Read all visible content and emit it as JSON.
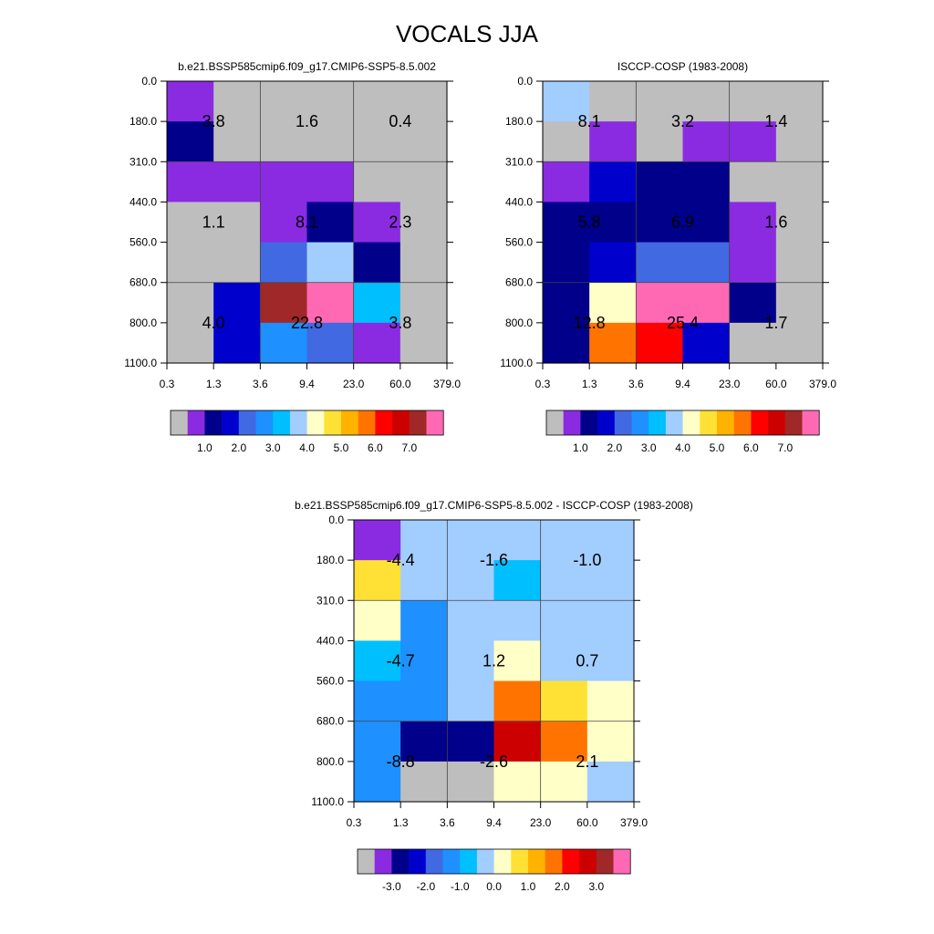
{
  "title": "VOCALS JJA",
  "palettes": {
    "abs": [
      "#bebebe",
      "#8a2be2",
      "#00008b",
      "#0000cd",
      "#4169e1",
      "#1e90ff",
      "#00bfff",
      "#a2cdff",
      "#ffffc8",
      "#ffe135",
      "#ffb300",
      "#ff7400",
      "#ff0000",
      "#cd0000",
      "#a02828",
      "#ff69b4"
    ],
    "diff": [
      "#bebebe",
      "#8a2be2",
      "#00008b",
      "#0000cd",
      "#4169e1",
      "#1e90ff",
      "#00bfff",
      "#a2cdff",
      "#ffffc8",
      "#ffe135",
      "#ffb300",
      "#ff7400",
      "#ff0000",
      "#cd0000",
      "#a02828",
      "#ff69b4"
    ]
  },
  "chart_data": [
    {
      "type": "heatmap",
      "title": "b.e21.BSSP585cmip6.f09_g17.CMIP6-SSP5-8.5.002",
      "x_tick_labels": [
        "0.3",
        "1.3",
        "3.6",
        "9.4",
        "23.0",
        "60.0",
        "379.0"
      ],
      "y_tick_labels": [
        "0.0",
        "180.0",
        "310.0",
        "440.0",
        "560.0",
        "680.0",
        "800.0",
        "1100.0"
      ],
      "cells": [
        [
          1,
          0,
          0,
          0,
          0,
          0
        ],
        [
          2,
          0,
          0,
          0,
          0,
          0
        ],
        [
          1,
          1,
          1,
          1,
          0,
          0
        ],
        [
          0,
          0,
          1,
          2,
          1,
          0
        ],
        [
          0,
          0,
          4,
          7,
          2,
          0
        ],
        [
          0,
          3,
          14,
          15,
          6,
          0
        ],
        [
          0,
          3,
          5,
          4,
          1,
          0
        ]
      ],
      "box_values": [
        [
          "3.8",
          "1.6",
          "0.4"
        ],
        [
          "1.1",
          "8.1",
          "2.3"
        ],
        [
          "4.0",
          "22.8",
          "3.8"
        ]
      ],
      "colorbar_labels": [
        "1.0",
        "2.0",
        "3.0",
        "4.0",
        "5.0",
        "6.0",
        "7.0"
      ],
      "palette": "abs"
    },
    {
      "type": "heatmap",
      "title": "ISCCP-COSP (1983-2008)",
      "x_tick_labels": [
        "0.3",
        "1.3",
        "3.6",
        "9.4",
        "23.0",
        "60.0",
        "379.0"
      ],
      "y_tick_labels": [
        "0.0",
        "180.0",
        "310.0",
        "440.0",
        "560.0",
        "680.0",
        "800.0",
        "1100.0"
      ],
      "cells": [
        [
          7,
          0,
          0,
          0,
          0,
          0
        ],
        [
          0,
          1,
          0,
          1,
          1,
          0
        ],
        [
          1,
          3,
          2,
          2,
          0,
          0
        ],
        [
          2,
          2,
          2,
          2,
          1,
          0
        ],
        [
          2,
          3,
          4,
          4,
          1,
          0
        ],
        [
          2,
          8,
          15,
          15,
          2,
          0
        ],
        [
          2,
          11,
          12,
          3,
          0,
          0
        ]
      ],
      "box_values": [
        [
          "8.1",
          "3.2",
          "1.4"
        ],
        [
          "5.8",
          "6.9",
          "1.6"
        ],
        [
          "12.8",
          "25.4",
          "1.7"
        ]
      ],
      "colorbar_labels": [
        "1.0",
        "2.0",
        "3.0",
        "4.0",
        "5.0",
        "6.0",
        "7.0"
      ],
      "palette": "abs"
    },
    {
      "type": "heatmap",
      "title": "b.e21.BSSP585cmip6.f09_g17.CMIP6-SSP5-8.5.002 - ISCCP-COSP (1983-2008)",
      "x_tick_labels": [
        "0.3",
        "1.3",
        "3.6",
        "9.4",
        "23.0",
        "60.0",
        "379.0"
      ],
      "y_tick_labels": [
        "0.0",
        "180.0",
        "310.0",
        "440.0",
        "560.0",
        "680.0",
        "800.0",
        "1100.0"
      ],
      "cells": [
        [
          1,
          7,
          7,
          7,
          7,
          7
        ],
        [
          9,
          7,
          7,
          6,
          7,
          7
        ],
        [
          8,
          5,
          7,
          7,
          7,
          7
        ],
        [
          6,
          5,
          7,
          8,
          7,
          7
        ],
        [
          5,
          5,
          7,
          11,
          9,
          8
        ],
        [
          5,
          2,
          2,
          13,
          11,
          8
        ],
        [
          5,
          0,
          0,
          8,
          8,
          7
        ]
      ],
      "box_values": [
        [
          "-4.4",
          "-1.6",
          "-1.0"
        ],
        [
          "-4.7",
          "1.2",
          "0.7"
        ],
        [
          "-8.8",
          "-2.6",
          "2.1"
        ]
      ],
      "colorbar_labels": [
        "-3.0",
        "-2.0",
        "-1.0",
        "0.0",
        "1.0",
        "2.0",
        "3.0"
      ],
      "palette": "diff"
    }
  ]
}
